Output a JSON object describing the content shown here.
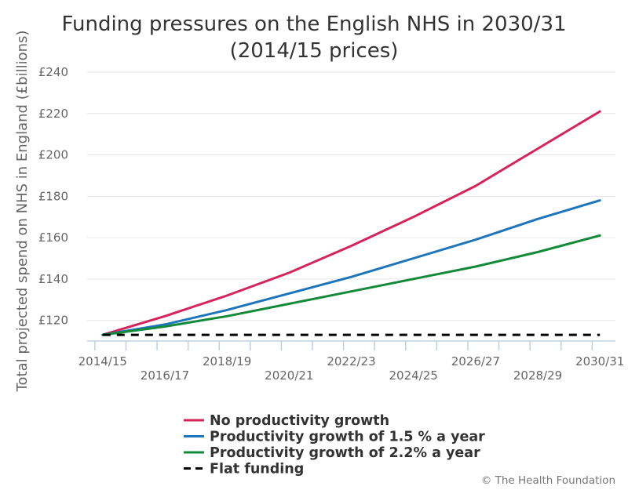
{
  "chart_data": {
    "type": "line",
    "title_lines": [
      "Funding pressures on the English NHS in 2030/31",
      "(2014/15 prices)"
    ],
    "ylabel": "Total projected spend on NHS in England (£billions)",
    "xlabel": "",
    "y_prefix": "£",
    "ylim": [
      110,
      240
    ],
    "y_ticks": [
      120,
      140,
      160,
      180,
      200,
      220,
      240
    ],
    "x_tick_labels": [
      "2014/15",
      "2016/17",
      "2018/19",
      "2020/21",
      "2022/23",
      "2024/25",
      "2026/27",
      "2028/29",
      "2030/31"
    ],
    "x_tick_years": [
      2014,
      2016,
      2018,
      2020,
      2022,
      2024,
      2026,
      2028,
      2030
    ],
    "x_labelled_years": [
      2014.25,
      2016.25,
      2018.25,
      2020.25,
      2022.25,
      2024.25,
      2026.25,
      2028.25,
      2030.25
    ],
    "xlim": [
      2013.75,
      2030.75
    ],
    "grid": true,
    "legend_position": "bottom",
    "series": [
      {
        "name": "No productivity growth",
        "color": "#d6245a",
        "dash": "solid",
        "x": [
          2014.25,
          2016.25,
          2018.25,
          2020.25,
          2022.25,
          2024.25,
          2026.25,
          2028.25,
          2030.25
        ],
        "y": [
          113,
          122,
          132,
          143,
          156,
          170,
          185,
          203,
          221
        ]
      },
      {
        "name": "Productivity growth of 1.5 % a year",
        "color": "#1d75bc",
        "dash": "solid",
        "x": [
          2014.25,
          2016.25,
          2018.25,
          2020.25,
          2022.25,
          2024.25,
          2026.25,
          2028.25,
          2030.25
        ],
        "y": [
          113,
          118,
          125,
          133,
          141,
          150,
          159,
          169,
          178
        ]
      },
      {
        "name": "Productivity growth of 2.2% a year",
        "color": "#138a3a",
        "dash": "solid",
        "x": [
          2014.25,
          2016.25,
          2018.25,
          2020.25,
          2022.25,
          2024.25,
          2026.25,
          2028.25,
          2030.25
        ],
        "y": [
          113,
          117,
          122,
          128,
          134,
          140,
          146,
          153,
          161
        ]
      },
      {
        "name": "Flat funding",
        "color": "#000000",
        "dash": "dashed",
        "x": [
          2014.25,
          2030.25
        ],
        "y": [
          113,
          113
        ]
      }
    ]
  },
  "credit": "© The Health Foundation"
}
